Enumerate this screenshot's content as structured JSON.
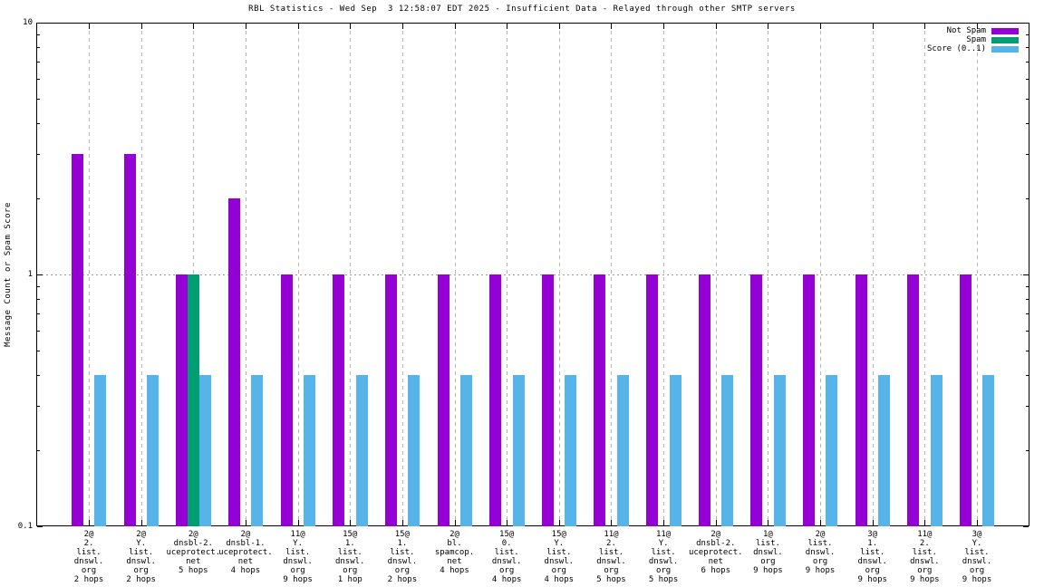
{
  "chart_data": {
    "type": "bar",
    "title": "RBL Statistics - Wed Sep  3 12:58:07 EDT 2025 - Insufficient Data - Relayed through other SMTP servers",
    "ylabel": "Message Count or Spam Score",
    "y_scale": "log",
    "ylim": [
      0.1,
      10
    ],
    "y_ticks": [
      10,
      1,
      0.1
    ],
    "y_tick_labels": [
      "10",
      "1",
      "0.1"
    ],
    "grid": {
      "vertical": "dashed at every category",
      "horizontal": "dotted at y=1"
    },
    "legend_position": "top-right",
    "legend": [
      {
        "label": "Not Spam",
        "color": "#9400d3"
      },
      {
        "label": "Spam",
        "color": "#009e73"
      },
      {
        "label": "Score (0..1)",
        "color": "#56b4e9"
      }
    ],
    "categories": [
      {
        "lines": [
          "2@",
          "2.",
          "list.",
          "dnswl.",
          "org",
          "2 hops"
        ]
      },
      {
        "lines": [
          "2@",
          "Y.",
          "list.",
          "dnswl.",
          "org",
          "2 hops"
        ]
      },
      {
        "lines": [
          "2@",
          "dnsbl-2.",
          "uceprotect.",
          "net",
          "5 hops"
        ]
      },
      {
        "lines": [
          "2@",
          "dnsbl-1.",
          "uceprotect.",
          "net",
          "4 hops"
        ]
      },
      {
        "lines": [
          "11@",
          "Y.",
          "list.",
          "dnswl.",
          "org",
          "9 hops"
        ]
      },
      {
        "lines": [
          "15@",
          "1.",
          "list.",
          "dnswl.",
          "org",
          "1 hop"
        ]
      },
      {
        "lines": [
          "15@",
          "1.",
          "list.",
          "dnswl.",
          "org",
          "2 hops"
        ]
      },
      {
        "lines": [
          "2@",
          "bl.",
          "spamcop.",
          "net",
          "4 hops"
        ]
      },
      {
        "lines": [
          "15@",
          "0.",
          "list.",
          "dnswl.",
          "org",
          "4 hops"
        ]
      },
      {
        "lines": [
          "15@",
          "Y.",
          "list.",
          "dnswl.",
          "org",
          "4 hops"
        ]
      },
      {
        "lines": [
          "11@",
          "2.",
          "list.",
          "dnswl.",
          "org",
          "5 hops"
        ]
      },
      {
        "lines": [
          "11@",
          "Y.",
          "list.",
          "dnswl.",
          "org",
          "5 hops"
        ]
      },
      {
        "lines": [
          "2@",
          "dnsbl-2.",
          "uceprotect.",
          "net",
          "6 hops"
        ]
      },
      {
        "lines": [
          "1@",
          "list.",
          "dnswl.",
          "org",
          "9 hops"
        ]
      },
      {
        "lines": [
          "2@",
          "list.",
          "dnswl.",
          "org",
          "9 hops"
        ]
      },
      {
        "lines": [
          "3@",
          "1.",
          "list.",
          "dnswl.",
          "org",
          "9 hops"
        ]
      },
      {
        "lines": [
          "11@",
          "2.",
          "list.",
          "dnswl.",
          "org",
          "9 hops"
        ]
      },
      {
        "lines": [
          "3@",
          "Y.",
          "list.",
          "dnswl.",
          "org",
          "9 hops"
        ]
      }
    ],
    "series": [
      {
        "name": "Not Spam",
        "color": "#9400d3",
        "values": [
          3,
          3,
          1,
          2,
          1,
          1,
          1,
          1,
          1,
          1,
          1,
          1,
          1,
          1,
          1,
          1,
          1,
          1
        ]
      },
      {
        "name": "Spam",
        "color": "#009e73",
        "values": [
          0,
          0,
          1,
          0,
          0,
          0,
          0,
          0,
          0,
          0,
          0,
          0,
          0,
          0,
          0,
          0,
          0,
          0
        ]
      },
      {
        "name": "Score (0..1)",
        "color": "#56b4e9",
        "values": [
          0.4,
          0.4,
          0.4,
          0.4,
          0.4,
          0.4,
          0.4,
          0.4,
          0.4,
          0.4,
          0.4,
          0.4,
          0.4,
          0.4,
          0.4,
          0.4,
          0.4,
          0.4
        ]
      }
    ]
  }
}
